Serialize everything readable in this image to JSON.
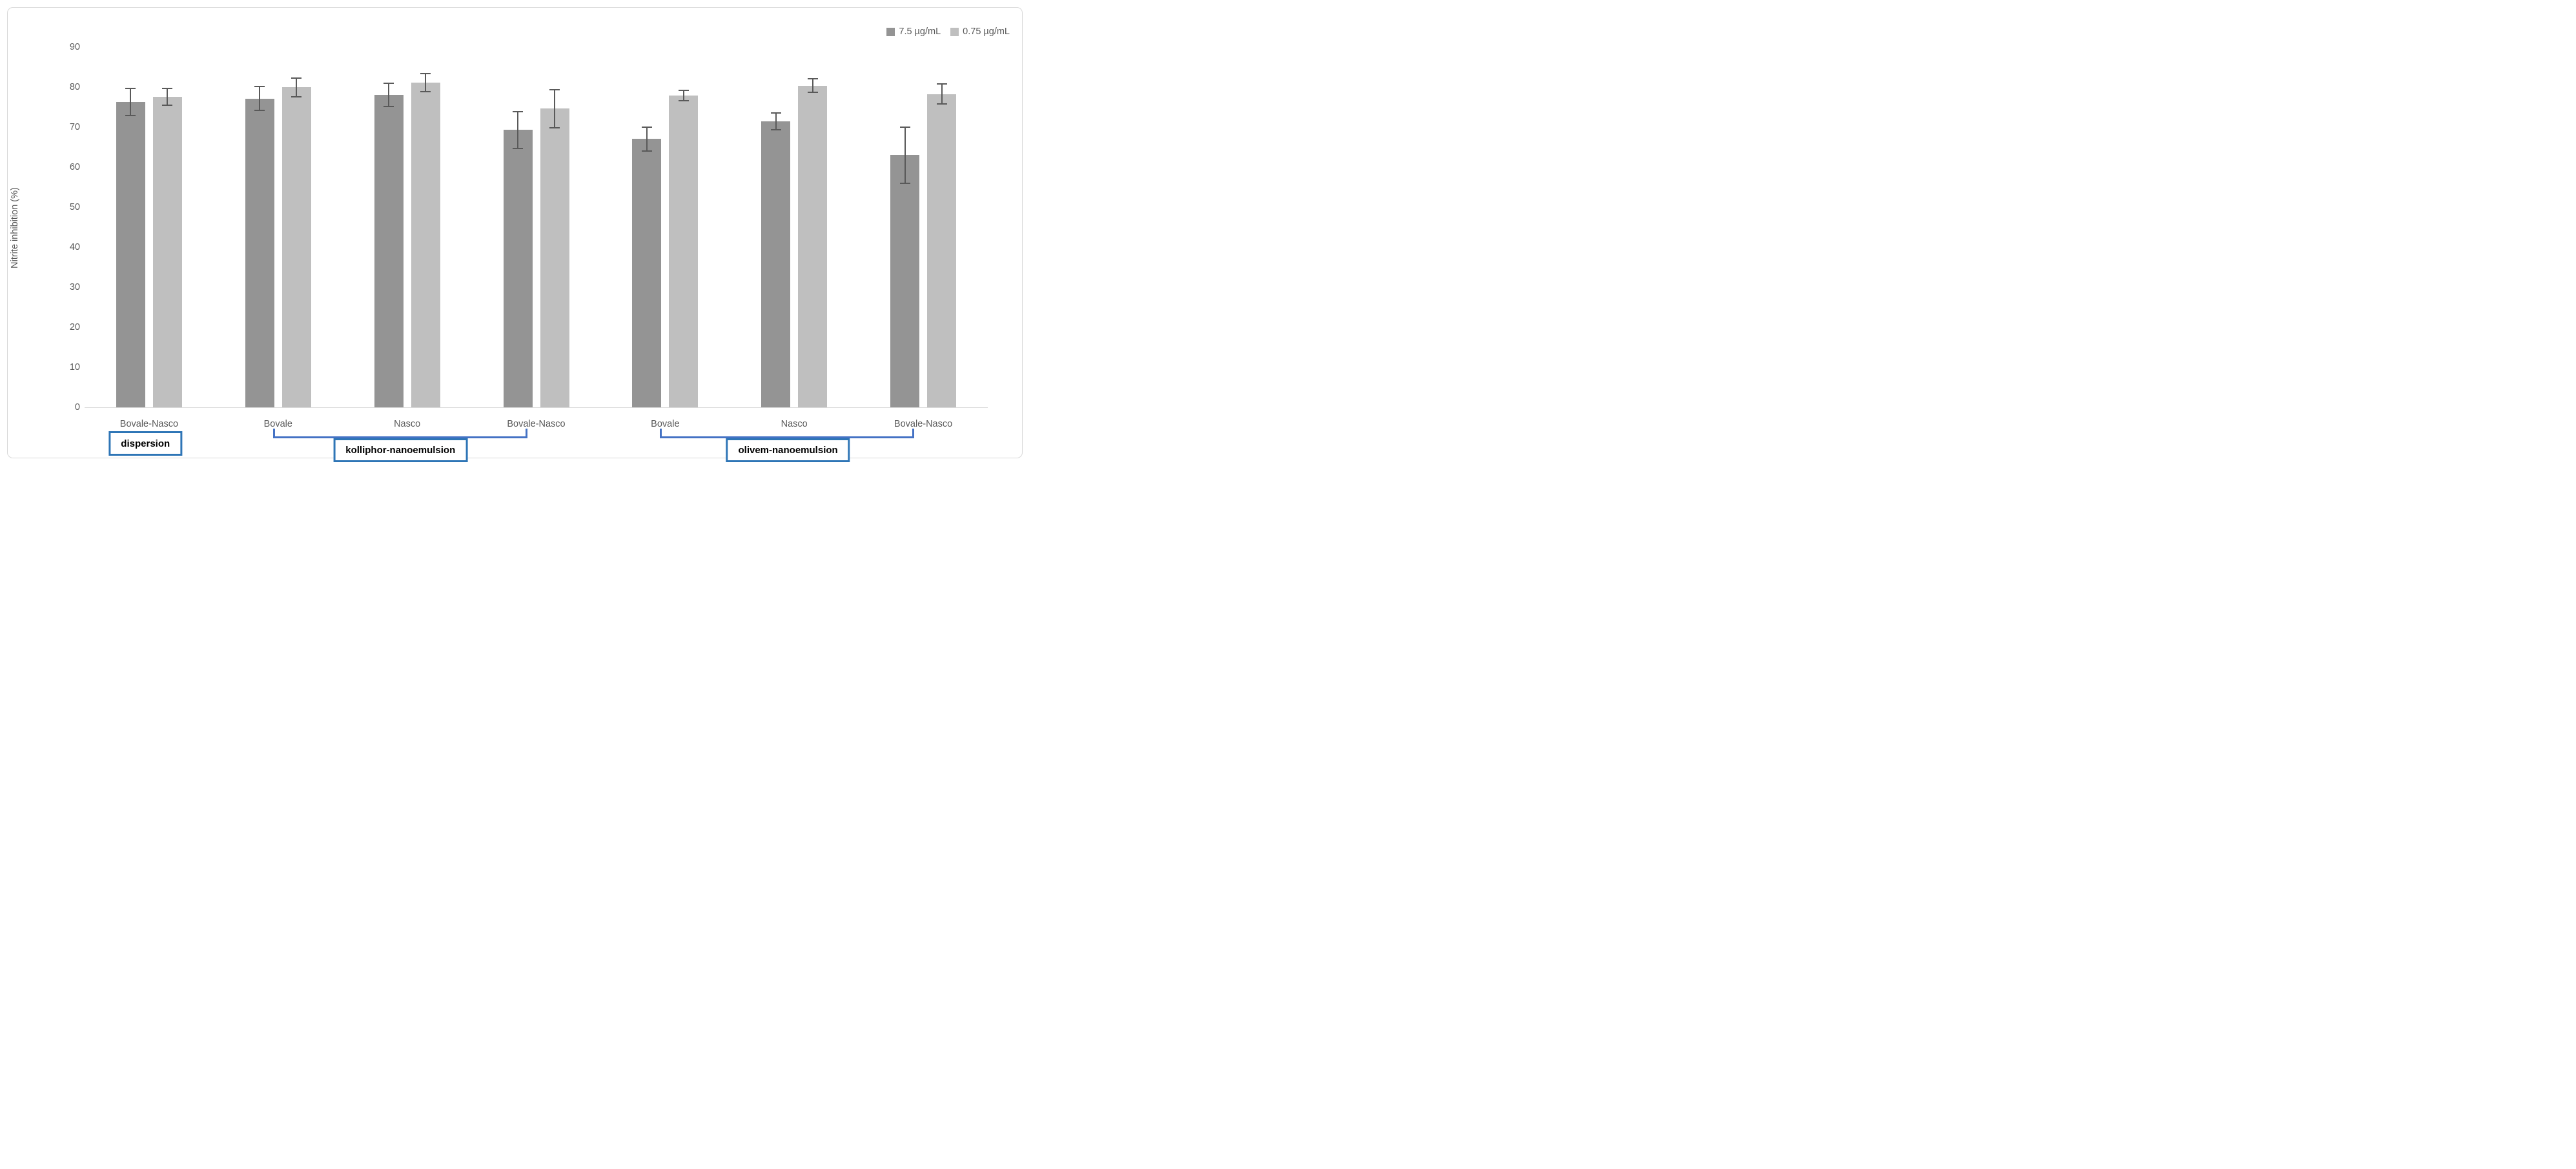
{
  "figure": {
    "background": "#ffffff",
    "frame_border_color": "#d9d9d9"
  },
  "legend": {
    "position": "top-right",
    "items": [
      {
        "label": "7.5 µg/mL",
        "color": "#949494",
        "icon": "legend-swatch-square"
      },
      {
        "label": "0.75 µg/mL",
        "color": "#bfbfbf",
        "icon": "legend-swatch-square"
      }
    ]
  },
  "chart_data": {
    "type": "bar",
    "title": "",
    "ylabel": "Nitrite inhibition (%)",
    "xlabel": "",
    "ylim": [
      0,
      90
    ],
    "ytick_step": 10,
    "grid": false,
    "legend_position": "top-right",
    "axis_line_color": "#d9d9d9",
    "tick_label_color": "#595959",
    "error_bar_color": "#595959",
    "categories": [
      "Bovale-Nasco",
      "Bovale",
      "Nasco",
      "Bovale-Nasco",
      "Bovale",
      "Nasco",
      "Bovale-Nasco"
    ],
    "series": [
      {
        "name": "7.5 µg/mL",
        "color": "#949494",
        "values": [
          76.3,
          77.1,
          78.1,
          69.3,
          67.0,
          71.4,
          63.0
        ],
        "errors": [
          3.4,
          3.0,
          2.9,
          4.6,
          3.0,
          2.1,
          7.0
        ]
      },
      {
        "name": "0.75 µg/mL",
        "color": "#bfbfbf",
        "values": [
          77.5,
          79.9,
          81.1,
          74.6,
          77.9,
          80.3,
          78.2
        ],
        "errors": [
          2.1,
          2.4,
          2.2,
          4.8,
          1.3,
          1.7,
          2.5
        ]
      }
    ],
    "groups": [
      {
        "label": "dispersion",
        "start_category": 0,
        "end_category": 0,
        "has_bracket": false,
        "box_border_color": "#2e75b6"
      },
      {
        "label": "kolliphor-nanoemulsion",
        "start_category": 1,
        "end_category": 3,
        "has_bracket": true,
        "box_border_color": "#2e75b6",
        "bracket_color": "#4472c4"
      },
      {
        "label": "olivem-nanoemulsion",
        "start_category": 4,
        "end_category": 6,
        "has_bracket": true,
        "box_border_color": "#2e75b6",
        "bracket_color": "#4472c4"
      }
    ]
  }
}
